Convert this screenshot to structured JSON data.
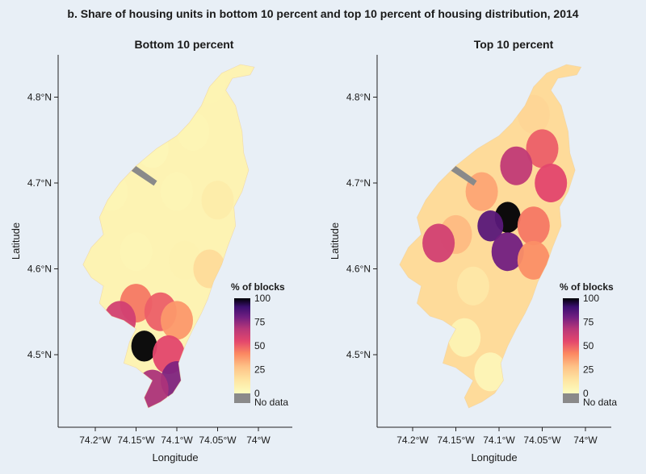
{
  "title": "b. Share of housing units in bottom 10 percent and top 10 percent of housing distribution, 2014",
  "colors": {
    "background": "#e8eff6",
    "nodata": "#8a8a8a",
    "scale": [
      "#fcfdbf",
      "#fec287",
      "#fb8761",
      "#e3466d",
      "#b73779",
      "#721f81",
      "#3b0f70",
      "#000004"
    ]
  },
  "chart_data": [
    {
      "type": "choropleth-map",
      "panel_title": "Bottom 10 percent",
      "xlabel": "Longitude",
      "ylabel": "Latitude",
      "x_ticks": [
        "74.2°W",
        "74.15°W",
        "74.1°W",
        "74.05°W",
        "74°W"
      ],
      "y_ticks": [
        "4.5°N",
        "4.6°N",
        "4.7°N",
        "4.8°N"
      ],
      "legend": {
        "title": "% of blocks",
        "ticks": [
          "100",
          "75",
          "50",
          "25",
          "0"
        ],
        "nodata_label": "No data",
        "range": [
          0,
          100
        ]
      },
      "regions": [
        {
          "lon": -74.06,
          "lat": 4.815,
          "value": 6
        },
        {
          "lon": -74.08,
          "lat": 4.76,
          "value": 5
        },
        {
          "lon": -74.13,
          "lat": 4.74,
          "value": 4
        },
        {
          "lon": -74.18,
          "lat": 4.69,
          "value": 5
        },
        {
          "lon": -74.1,
          "lat": 4.69,
          "value": 5
        },
        {
          "lon": -74.05,
          "lat": 4.68,
          "value": 10
        },
        {
          "lon": -74.15,
          "lat": 4.62,
          "value": 5
        },
        {
          "lon": -74.09,
          "lat": 4.61,
          "value": 7
        },
        {
          "lon": -74.06,
          "lat": 4.6,
          "value": 18
        },
        {
          "lon": -74.15,
          "lat": 4.56,
          "value": 45
        },
        {
          "lon": -74.17,
          "lat": 4.54,
          "value": 60
        },
        {
          "lon": -74.12,
          "lat": 4.55,
          "value": 50
        },
        {
          "lon": -74.1,
          "lat": 4.54,
          "value": 38
        },
        {
          "lon": -74.14,
          "lat": 4.51,
          "value": 100
        },
        {
          "lon": -74.11,
          "lat": 4.5,
          "value": 55
        },
        {
          "lon": -74.1,
          "lat": 4.47,
          "value": 78
        },
        {
          "lon": -74.13,
          "lat": 4.46,
          "value": 70
        }
      ],
      "no_data_regions": [
        {
          "lon": -74.15,
          "lat": 4.71
        }
      ]
    },
    {
      "type": "choropleth-map",
      "panel_title": "Top 10 percent",
      "xlabel": "Longitude",
      "ylabel": "Latitude",
      "x_ticks": [
        "74.2°W",
        "74.15°W",
        "74.1°W",
        "74.05°W",
        "74°W"
      ],
      "y_ticks": [
        "4.5°N",
        "4.6°N",
        "4.7°N",
        "4.8°N"
      ],
      "legend": {
        "title": "% of blocks",
        "ticks": [
          "100",
          "75",
          "50",
          "25",
          "0"
        ],
        "nodata_label": "No data",
        "range": [
          0,
          100
        ]
      },
      "regions": [
        {
          "lon": -74.06,
          "lat": 4.78,
          "value": 20
        },
        {
          "lon": -74.05,
          "lat": 4.74,
          "value": 50
        },
        {
          "lon": -74.08,
          "lat": 4.72,
          "value": 65
        },
        {
          "lon": -74.04,
          "lat": 4.7,
          "value": 55
        },
        {
          "lon": -74.12,
          "lat": 4.69,
          "value": 35
        },
        {
          "lon": -74.09,
          "lat": 4.66,
          "value": 100
        },
        {
          "lon": -74.11,
          "lat": 4.65,
          "value": 85
        },
        {
          "lon": -74.06,
          "lat": 4.65,
          "value": 45
        },
        {
          "lon": -74.15,
          "lat": 4.64,
          "value": 30
        },
        {
          "lon": -74.17,
          "lat": 4.63,
          "value": 60
        },
        {
          "lon": -74.09,
          "lat": 4.62,
          "value": 80
        },
        {
          "lon": -74.06,
          "lat": 4.61,
          "value": 40
        },
        {
          "lon": -74.13,
          "lat": 4.58,
          "value": 12
        },
        {
          "lon": -74.14,
          "lat": 4.52,
          "value": 6
        },
        {
          "lon": -74.11,
          "lat": 4.48,
          "value": 4
        }
      ],
      "no_data_regions": [
        {
          "lon": -74.15,
          "lat": 4.71
        }
      ]
    }
  ],
  "panel_order": [
    "left",
    "right"
  ]
}
